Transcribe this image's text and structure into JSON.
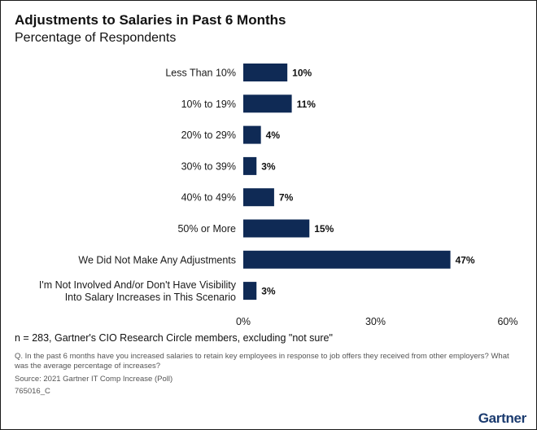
{
  "header": {
    "title": "Adjustments to Salaries in Past 6 Months",
    "subtitle": "Percentage of Respondents"
  },
  "chart_data": {
    "type": "bar",
    "orientation": "horizontal",
    "title": "Adjustments to Salaries in Past 6 Months",
    "subtitle": "Percentage of Respondents",
    "categories": [
      "Less Than 10%",
      "10% to 19%",
      "20% to 29%",
      "30% to 39%",
      "40% to 49%",
      "50% or More",
      "We Did Not Make Any Adjustments",
      "I'm Not Involved And/or Don't Have Visibility Into Salary Increases in This Scenario"
    ],
    "category_lines": [
      [
        "Less Than 10%"
      ],
      [
        "10% to 19%"
      ],
      [
        "20% to 29%"
      ],
      [
        "30% to 39%"
      ],
      [
        "40% to 49%"
      ],
      [
        "50% or More"
      ],
      [
        "We Did Not Make Any Adjustments"
      ],
      [
        "I'm Not Involved And/or Don't Have Visibility",
        "Into Salary Increases in This Scenario"
      ]
    ],
    "values": [
      10,
      11,
      4,
      3,
      7,
      15,
      47,
      3
    ],
    "value_labels": [
      "10%",
      "11%",
      "4%",
      "3%",
      "7%",
      "15%",
      "47%",
      "3%"
    ],
    "xlim": [
      0,
      60
    ],
    "x_ticks": [
      0,
      30,
      60
    ],
    "x_tick_labels": [
      "0%",
      "30%",
      "60%"
    ],
    "grid": false,
    "bar_color": "#0f2a55"
  },
  "footer": {
    "note": "n = 283, Gartner's CIO Research Circle members, excluding \"not sure\"",
    "question": "Q. In the past 6 months have you increased salaries to retain key employees in response to job offers they received from other employers? What was the average percentage of increases?",
    "source": "Source: 2021 Gartner IT Comp Increase (Poll)",
    "code": "765016_C",
    "logo": "Gartner"
  }
}
